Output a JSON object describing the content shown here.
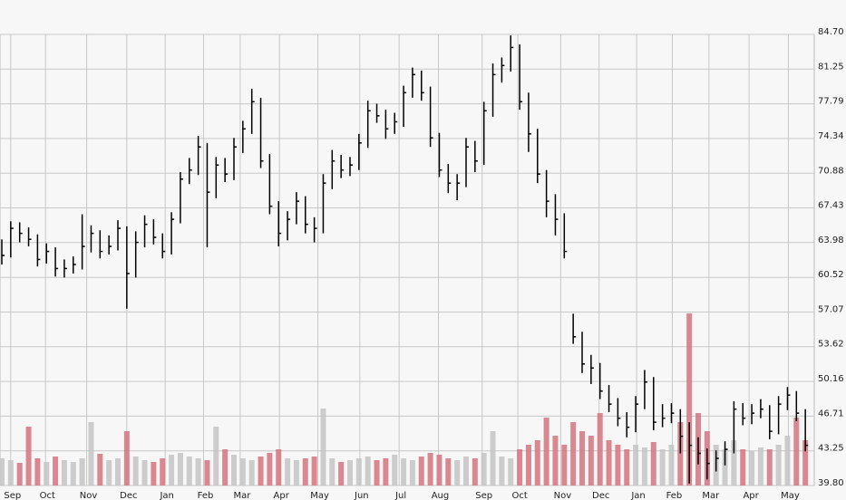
{
  "chart_data": {
    "type": "ohlc",
    "ylim": [
      39.8,
      84.7
    ],
    "yticks": [
      {
        "value": 84.7,
        "label": "84.70"
      },
      81.25,
      77.79,
      74.34,
      70.88,
      67.43,
      63.98,
      60.52,
      57.07,
      53.62,
      50.16,
      46.71,
      43.25,
      {
        "value": 39.8,
        "label": "39.80"
      }
    ],
    "xlim": [
      0,
      91
    ],
    "xticks": [
      {
        "value": 1.0,
        "label": "Sep"
      },
      {
        "value": 4.9,
        "label": "Oct"
      },
      {
        "value": 9.5,
        "label": "Nov"
      },
      {
        "value": 14.0,
        "label": "Dec"
      },
      {
        "value": 18.3,
        "label": "Jan"
      },
      {
        "value": 22.6,
        "label": "Feb"
      },
      {
        "value": 26.7,
        "label": "Mar"
      },
      {
        "value": 31.1,
        "label": "Apr"
      },
      {
        "value": 35.4,
        "label": "May"
      },
      {
        "value": 40.1,
        "label": "Jun"
      },
      {
        "value": 44.5,
        "label": "Jul"
      },
      {
        "value": 48.9,
        "label": "Aug"
      },
      {
        "value": 53.8,
        "label": "Sep"
      },
      {
        "value": 57.8,
        "label": "Oct"
      },
      {
        "value": 62.6,
        "label": "Nov"
      },
      {
        "value": 66.9,
        "label": "Dec"
      },
      {
        "value": 71.1,
        "label": "Jan"
      },
      {
        "value": 75.1,
        "label": "Feb"
      },
      {
        "value": 79.2,
        "label": "Mar"
      },
      {
        "value": 83.7,
        "label": "Apr"
      },
      {
        "value": 88.1,
        "label": "May"
      }
    ],
    "grid": true,
    "color": "#000000",
    "volume_up_color": "#c4c4c4",
    "volume_down_color": "#d4737f",
    "close": [
      62.7,
      65.4,
      64.9,
      64.3,
      62.3,
      63.1,
      61.4,
      61.4,
      61.8,
      63.6,
      64.9,
      63.1,
      63.6,
      65.4,
      60.9,
      64.0,
      65.8,
      64.5,
      63.1,
      66.3,
      70.3,
      71.2,
      73.5,
      69.0,
      71.7,
      70.8,
      73.5,
      75.3,
      78.0,
      72.1,
      67.6,
      64.9,
      66.3,
      68.1,
      65.8,
      65.4,
      69.9,
      72.1,
      71.2,
      71.7,
      73.9,
      77.1,
      76.6,
      75.3,
      76.0,
      78.9,
      80.7,
      78.9,
      74.4,
      71.2,
      69.9,
      69.9,
      73.5,
      72.1,
      77.1,
      80.7,
      81.6,
      83.4,
      78.0,
      74.8,
      70.8,
      68.1,
      66.3,
      63.1,
      54.6,
      51.9,
      51.5,
      49.2,
      47.9,
      46.5,
      45.6,
      47.9,
      50.1,
      46.1,
      46.5,
      47.0,
      44.7,
      43.8,
      43.0,
      42.0,
      42.5,
      43.4,
      47.4,
      46.5,
      47.0,
      47.4,
      45.2,
      47.9,
      48.8,
      47.0,
      43.8
    ],
    "high": [
      64.3,
      66.1,
      66.0,
      65.5,
      64.8,
      63.9,
      63.5,
      62.3,
      62.6,
      66.8,
      65.7,
      65.2,
      64.7,
      66.2,
      65.6,
      65.1,
      66.7,
      66.3,
      64.9,
      67.0,
      71.0,
      72.4,
      74.6,
      73.9,
      72.5,
      72.4,
      74.4,
      76.1,
      79.3,
      78.4,
      72.8,
      68.1,
      67.1,
      69.0,
      68.6,
      66.5,
      70.8,
      73.2,
      72.7,
      72.5,
      74.8,
      78.1,
      77.8,
      77.2,
      76.9,
      79.6,
      81.4,
      81.1,
      79.5,
      74.9,
      71.8,
      70.8,
      74.4,
      74.1,
      78.0,
      81.8,
      82.4,
      84.6,
      83.7,
      78.9,
      75.3,
      71.2,
      68.8,
      66.9,
      56.9,
      55.1,
      52.8,
      52.0,
      49.8,
      48.5,
      47.1,
      48.7,
      51.3,
      50.6,
      47.9,
      48.0,
      47.4,
      46.1,
      44.6,
      43.5,
      43.3,
      44.2,
      48.2,
      48.0,
      47.9,
      48.4,
      47.8,
      48.7,
      49.6,
      49.2,
      47.4
    ],
    "low": [
      61.8,
      62.5,
      64.0,
      63.6,
      61.6,
      61.9,
      60.6,
      60.5,
      60.9,
      61.3,
      63.0,
      62.4,
      62.8,
      63.2,
      57.4,
      60.5,
      63.5,
      63.8,
      62.4,
      62.8,
      65.9,
      69.8,
      70.7,
      63.5,
      68.4,
      70.0,
      70.2,
      72.9,
      74.8,
      71.4,
      66.8,
      63.6,
      64.2,
      65.8,
      64.9,
      64.0,
      64.9,
      69.3,
      70.4,
      70.6,
      71.2,
      73.4,
      75.9,
      74.3,
      74.8,
      75.5,
      78.4,
      78.1,
      73.5,
      70.5,
      68.9,
      68.2,
      69.5,
      71.0,
      71.7,
      76.5,
      79.9,
      81.0,
      77.2,
      73.0,
      69.9,
      66.5,
      64.7,
      62.4,
      53.9,
      51.0,
      49.9,
      48.4,
      47.1,
      45.7,
      44.6,
      45.1,
      47.4,
      45.3,
      45.6,
      46.0,
      43.0,
      40.0,
      41.9,
      40.4,
      41.2,
      41.8,
      43.0,
      45.8,
      45.9,
      46.5,
      44.4,
      44.9,
      47.3,
      46.2,
      43.2
    ],
    "volume": [
      30,
      28,
      25,
      65,
      30,
      26,
      32,
      28,
      26,
      30,
      70,
      35,
      28,
      30,
      60,
      32,
      28,
      26,
      30,
      34,
      36,
      32,
      30,
      28,
      65,
      40,
      34,
      30,
      28,
      32,
      36,
      40,
      30,
      28,
      30,
      32,
      85,
      30,
      26,
      28,
      30,
      32,
      28,
      30,
      34,
      30,
      28,
      32,
      36,
      34,
      30,
      28,
      32,
      30,
      36,
      60,
      32,
      30,
      40,
      45,
      50,
      75,
      55,
      45,
      70,
      60,
      55,
      80,
      50,
      45,
      40,
      45,
      42,
      48,
      40,
      45,
      70,
      190,
      80,
      60,
      45,
      40,
      50,
      40,
      38,
      42,
      40,
      45,
      55,
      75,
      50
    ]
  }
}
